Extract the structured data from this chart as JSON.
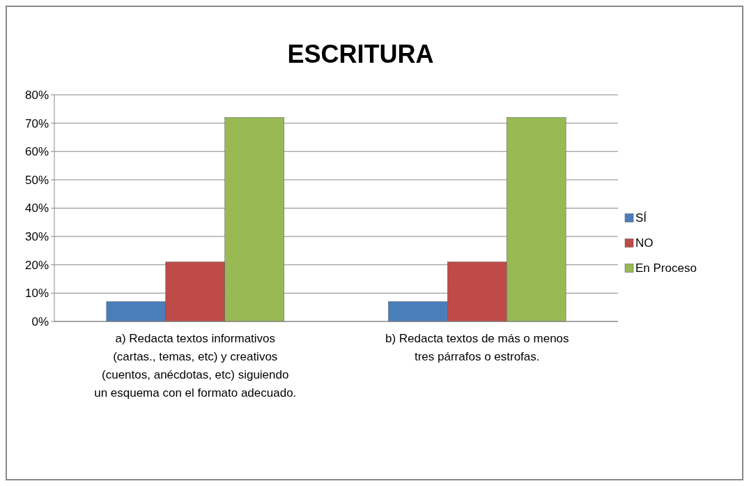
{
  "chart_data": {
    "type": "bar",
    "title": "ESCRITURA",
    "categories": [
      "a) Redacta textos informativos (cartas., temas, etc) y creativos (cuentos, anécdotas, etc) siguiendo un esquema con el formato adecuado.",
      "b) Redacta textos de más o menos tres párrafos o estrofas."
    ],
    "series": [
      {
        "name": "SÍ",
        "color": "#4a7ebb",
        "values": [
          7,
          7
        ]
      },
      {
        "name": "NO",
        "color": "#be4b48",
        "values": [
          21,
          21
        ]
      },
      {
        "name": "En Proceso",
        "color": "#98b954",
        "values": [
          72,
          72
        ]
      }
    ],
    "ylim": [
      0,
      80
    ],
    "yticks": [
      {
        "value": 0,
        "label": "0%"
      },
      {
        "value": 10,
        "label": "10%"
      },
      {
        "value": 20,
        "label": "20%"
      },
      {
        "value": 30,
        "label": "30%"
      },
      {
        "value": 40,
        "label": "40%"
      },
      {
        "value": 50,
        "label": "50%"
      },
      {
        "value": 60,
        "label": "60%"
      },
      {
        "value": 70,
        "label": "70%"
      },
      {
        "value": 80,
        "label": "80%"
      }
    ],
    "grid": "y",
    "legend": "right"
  }
}
